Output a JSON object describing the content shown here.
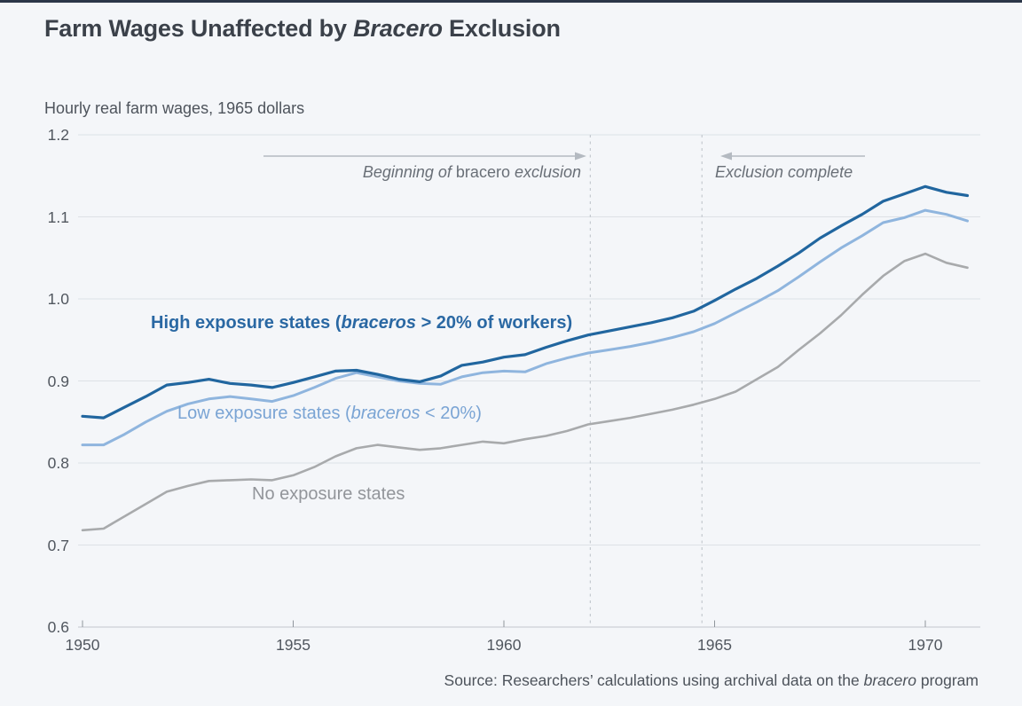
{
  "page": {
    "title_parts": [
      "Farm Wages Unaffected by ",
      "Bracero",
      " Exclusion"
    ],
    "subtitle": "Hourly real farm wages, 1965 dollars",
    "source_parts": [
      "Source: Researchers’ calculations using archival data on the ",
      "bracero",
      " program"
    ]
  },
  "annotations": {
    "begin": {
      "text_parts": [
        "Beginning of ",
        "bracero",
        " exclusion"
      ],
      "line_year": 1962.05,
      "arrow_direction": "right"
    },
    "complete": {
      "label": "Exclusion complete",
      "line_year": 1964.7,
      "arrow_direction": "left"
    }
  },
  "legend": {
    "high_parts": [
      "High exposure states (",
      "braceros",
      " > 20% of workers)"
    ],
    "low_parts": [
      "Low exposure states (",
      "braceros",
      " < 20%)"
    ],
    "no_label": "No exposure states"
  },
  "colors": {
    "high_line": "#21669f",
    "high_label": "#2a68a3",
    "low_line": "#8fb5de",
    "low_label": "#7aa4d4",
    "no_line": "#a8aaac",
    "no_label": "#92959a",
    "grid": "#dde1e6",
    "axis": "#c2c7cd",
    "tick": "#8f959c",
    "dashed_line": "#c4c9cf",
    "arrow": "#b4bac1",
    "background": "#f4f6f9",
    "accent_bar": "#2b3648"
  },
  "chart_data": {
    "type": "line",
    "title": "Farm Wages Unaffected by Bracero Exclusion",
    "xlabel": "",
    "ylabel": "Hourly real farm wages, 1965 dollars",
    "x_range": [
      1950,
      1971.3
    ],
    "y_range": [
      0.6,
      1.2
    ],
    "x_ticks": [
      1950,
      1955,
      1960,
      1965,
      1970
    ],
    "y_ticks": [
      "1.2",
      "1.1",
      "1.0",
      "0.9",
      "0.8",
      "0.7",
      "0.6"
    ],
    "y_tick_values": [
      1.2,
      1.1,
      1.0,
      0.9,
      0.8,
      0.7,
      0.6
    ],
    "grid": "horizontal-only",
    "legend_position": "inline-on-chart",
    "x": [
      1950,
      1950.5,
      1951,
      1951.5,
      1952,
      1952.5,
      1953,
      1953.5,
      1954,
      1954.5,
      1955,
      1955.5,
      1956,
      1956.5,
      1957,
      1957.5,
      1958,
      1958.5,
      1959,
      1959.5,
      1960,
      1960.5,
      1961,
      1961.5,
      1962,
      1962.5,
      1963,
      1963.5,
      1964,
      1964.5,
      1965,
      1965.5,
      1966,
      1966.5,
      1967,
      1967.5,
      1968,
      1968.5,
      1969,
      1969.5,
      1970,
      1970.5,
      1971
    ],
    "series": [
      {
        "name": "High exposure states (braceros > 20% of workers)",
        "color": "#21669f",
        "width": 3.2,
        "values": [
          0.857,
          0.855,
          0.868,
          0.881,
          0.895,
          0.898,
          0.902,
          0.897,
          0.895,
          0.892,
          0.898,
          0.905,
          0.912,
          0.913,
          0.908,
          0.902,
          0.899,
          0.906,
          0.919,
          0.923,
          0.929,
          0.932,
          0.941,
          0.949,
          0.956,
          0.961,
          0.966,
          0.971,
          0.977,
          0.985,
          0.998,
          1.012,
          1.025,
          1.04,
          1.056,
          1.074,
          1.089,
          1.103,
          1.119,
          1.128,
          1.137,
          1.13,
          1.126
        ]
      },
      {
        "name": "Low exposure states (braceros < 20%)",
        "color": "#8fb5de",
        "width": 3.0,
        "values": [
          0.822,
          0.822,
          0.835,
          0.85,
          0.863,
          0.872,
          0.878,
          0.881,
          0.878,
          0.875,
          0.882,
          0.892,
          0.903,
          0.91,
          0.905,
          0.9,
          0.897,
          0.896,
          0.905,
          0.91,
          0.912,
          0.911,
          0.921,
          0.928,
          0.934,
          0.938,
          0.942,
          0.947,
          0.953,
          0.96,
          0.97,
          0.983,
          0.996,
          1.01,
          1.027,
          1.045,
          1.062,
          1.077,
          1.093,
          1.099,
          1.108,
          1.103,
          1.095
        ]
      },
      {
        "name": "No exposure states",
        "color": "#a8aaac",
        "width": 2.6,
        "values": [
          0.718,
          0.72,
          0.735,
          0.75,
          0.765,
          0.772,
          0.778,
          0.779,
          0.78,
          0.779,
          0.785,
          0.795,
          0.808,
          0.818,
          0.822,
          0.819,
          0.816,
          0.818,
          0.822,
          0.826,
          0.824,
          0.829,
          0.833,
          0.839,
          0.847,
          0.851,
          0.855,
          0.86,
          0.865,
          0.871,
          0.878,
          0.887,
          0.902,
          0.917,
          0.938,
          0.958,
          0.98,
          1.005,
          1.028,
          1.046,
          1.055,
          1.044,
          1.038
        ]
      }
    ],
    "annotation_lines": [
      {
        "label": "Beginning of bracero exclusion",
        "year": 1962.05
      },
      {
        "label": "Exclusion complete",
        "year": 1964.7
      }
    ]
  }
}
